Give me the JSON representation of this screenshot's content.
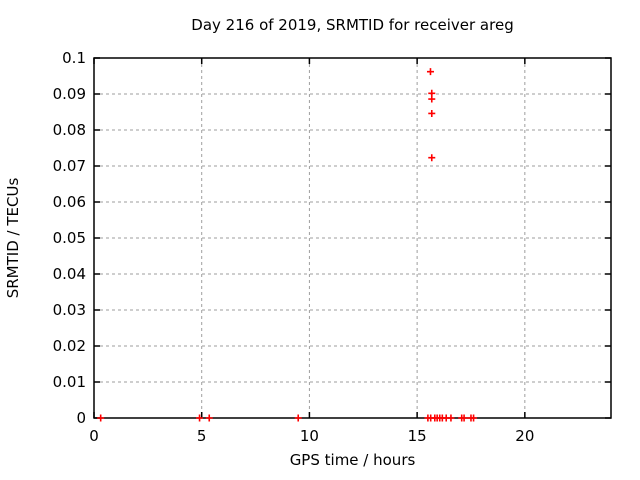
{
  "chart_data": {
    "type": "scatter",
    "title": "Day 216 of 2019, SRMTID for receiver areg",
    "xlabel": "GPS time / hours",
    "ylabel": "SRMTID / TECUs",
    "xlim": [
      0,
      24
    ],
    "ylim": [
      0,
      0.1
    ],
    "grid": true,
    "legend_position": "none",
    "xticks": {
      "values": [
        0,
        5,
        10,
        15,
        20
      ],
      "labels": [
        "0",
        "5",
        "10",
        "15",
        "20"
      ]
    },
    "yticks": {
      "values": [
        0,
        0.01,
        0.02,
        0.03,
        0.04,
        0.05,
        0.06,
        0.07,
        0.08,
        0.09,
        0.1
      ],
      "labels": [
        "0",
        "0.01",
        "0.02",
        "0.03",
        "0.04",
        "0.05",
        "0.06",
        "0.07",
        "0.08",
        "0.09",
        "0.1"
      ]
    },
    "marker": {
      "shape": "plus",
      "size": 7
    },
    "series": [
      {
        "name": "SRMTID",
        "points": [
          [
            15.62,
            0.0962
          ],
          [
            15.68,
            0.0902
          ],
          [
            15.68,
            0.0886
          ],
          [
            15.68,
            0.0846
          ],
          [
            15.68,
            0.0723
          ],
          [
            0.31,
            0
          ],
          [
            4.9,
            0
          ],
          [
            5.35,
            0
          ],
          [
            9.48,
            0
          ],
          [
            15.5,
            0
          ],
          [
            15.63,
            0
          ],
          [
            15.82,
            0
          ],
          [
            15.93,
            0
          ],
          [
            16.05,
            0
          ],
          [
            16.17,
            0
          ],
          [
            16.35,
            0
          ],
          [
            16.57,
            0
          ],
          [
            17.07,
            0
          ],
          [
            17.18,
            0
          ],
          [
            17.5,
            0
          ],
          [
            17.62,
            0
          ]
        ]
      }
    ]
  },
  "colors": {
    "background": "#ffffff",
    "border": "#000000",
    "grid": "#9e9e9e",
    "marker": "#ff0000",
    "text": "#000000"
  }
}
